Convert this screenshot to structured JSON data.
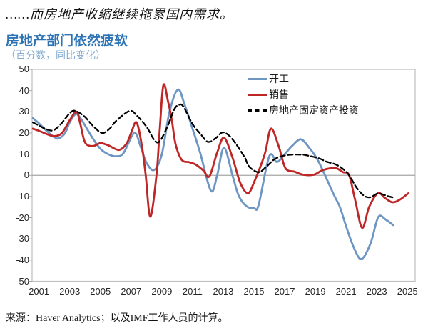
{
  "page": {
    "heading": "……而房地产收缩继续拖累国内需求。",
    "source": "来源：Haver Analytics；以及IMF工作人员的计算。"
  },
  "chart": {
    "title": "房地产部门依然疲软",
    "subtitle": "（百分数，同比变化）",
    "colors": {
      "title": "#2E74B5",
      "subtitle": "#84ABCF",
      "axis_text": "#262626",
      "plot_border": "#BFBFBF",
      "zero_line": "#A6A6A6",
      "tick": "#A6A6A6"
    }
  },
  "chart_data": {
    "type": "line",
    "title": "房地产部门依然疲软",
    "subtitle": "（百分数，同比变化）",
    "xlabel": "",
    "ylabel": "",
    "ylim": [
      -50,
      50
    ],
    "xlim": [
      2000.55,
      2025.5
    ],
    "y_ticks": [
      50,
      40,
      30,
      20,
      10,
      0,
      -10,
      -20,
      -30,
      -40,
      -50
    ],
    "x_ticks": [
      2001,
      2003,
      2005,
      2007,
      2009,
      2011,
      2013,
      2015,
      2017,
      2019,
      2021,
      2023,
      2025
    ],
    "grid": "zero-line-only",
    "legend_position": "top-right-inside",
    "series": [
      {
        "name": "开工",
        "color": "#6D96C3",
        "style": "solid",
        "points": [
          [
            2000.6,
            27
          ],
          [
            2001,
            24.5
          ],
          [
            2001.5,
            21
          ],
          [
            2002,
            18
          ],
          [
            2002.3,
            17.5
          ],
          [
            2002.7,
            20
          ],
          [
            2003,
            25
          ],
          [
            2003.4,
            29
          ],
          [
            2003.7,
            27
          ],
          [
            2004,
            23.5
          ],
          [
            2004.5,
            17.5
          ],
          [
            2005,
            12.5
          ],
          [
            2005.5,
            10
          ],
          [
            2006,
            9
          ],
          [
            2006.5,
            10.5
          ],
          [
            2007.2,
            20
          ],
          [
            2007.6,
            14
          ],
          [
            2008,
            6
          ],
          [
            2008.5,
            2.5
          ],
          [
            2009,
            10
          ],
          [
            2009.5,
            30
          ],
          [
            2010.05,
            40.5
          ],
          [
            2010.5,
            33
          ],
          [
            2011,
            22
          ],
          [
            2011.5,
            10.5
          ],
          [
            2012.2,
            -7.3
          ],
          [
            2012.6,
            0
          ],
          [
            2013.05,
            13
          ],
          [
            2013.6,
            0
          ],
          [
            2014,
            -9.5
          ],
          [
            2014.5,
            -14.5
          ],
          [
            2015,
            -15.5
          ],
          [
            2015.3,
            -14
          ],
          [
            2016,
            9
          ],
          [
            2016.5,
            6.3
          ],
          [
            2017,
            10
          ],
          [
            2017.5,
            14
          ],
          [
            2018.05,
            17
          ],
          [
            2018.6,
            13
          ],
          [
            2019.2,
            6.6
          ],
          [
            2020.2,
            -9.1
          ],
          [
            2020.6,
            -15
          ],
          [
            2021,
            -24
          ],
          [
            2021.5,
            -34
          ],
          [
            2022,
            -39.5
          ],
          [
            2022.6,
            -32
          ],
          [
            2023.1,
            -19.7
          ],
          [
            2023.6,
            -21
          ],
          [
            2024.07,
            -23.5
          ]
        ]
      },
      {
        "name": "销售",
        "color": "#BF2726",
        "style": "solid",
        "points": [
          [
            2000.6,
            22
          ],
          [
            2001,
            21
          ],
          [
            2001.5,
            19.5
          ],
          [
            2002,
            18.5
          ],
          [
            2002.5,
            20
          ],
          [
            2003,
            26
          ],
          [
            2003.45,
            30
          ],
          [
            2003.7,
            24
          ],
          [
            2004,
            15.5
          ],
          [
            2004.5,
            13.8
          ],
          [
            2005,
            15.2
          ],
          [
            2005.5,
            14.2
          ],
          [
            2006.2,
            12
          ],
          [
            2006.7,
            15
          ],
          [
            2007,
            20
          ],
          [
            2007.35,
            25
          ],
          [
            2007.7,
            14
          ],
          [
            2007.95,
            0
          ],
          [
            2008.25,
            -19.5
          ],
          [
            2008.65,
            0
          ],
          [
            2008.85,
            20
          ],
          [
            2009.1,
            42.5
          ],
          [
            2009.4,
            35
          ],
          [
            2009.65,
            26
          ],
          [
            2009.9,
            14.6
          ],
          [
            2010.3,
            7.3
          ],
          [
            2010.8,
            6.2
          ],
          [
            2011.2,
            5.1
          ],
          [
            2011.7,
            2.3
          ],
          [
            2012.1,
            -0.5
          ],
          [
            2012.6,
            10.7
          ],
          [
            2013.05,
            17.8
          ],
          [
            2013.6,
            8.4
          ],
          [
            2014.1,
            -3.4
          ],
          [
            2014.6,
            -8.4
          ],
          [
            2015,
            -3.4
          ],
          [
            2015.7,
            10
          ],
          [
            2016.1,
            22
          ],
          [
            2016.6,
            14
          ],
          [
            2017.05,
            3.4
          ],
          [
            2017.65,
            1.7
          ],
          [
            2018.2,
            0.3
          ],
          [
            2018.9,
            0.3
          ],
          [
            2019.5,
            2.5
          ],
          [
            2020.3,
            3.4
          ],
          [
            2020.8,
            1.5
          ],
          [
            2021.2,
            0
          ],
          [
            2021.6,
            -12
          ],
          [
            2022.05,
            -24.8
          ],
          [
            2022.5,
            -15
          ],
          [
            2023.07,
            -8.4
          ],
          [
            2023.5,
            -10.5
          ],
          [
            2024,
            -12.7
          ],
          [
            2024.5,
            -11.5
          ],
          [
            2025.05,
            -8.5
          ]
        ]
      },
      {
        "name": "房地产固定资产投资",
        "color": "#000000",
        "style": "dashed",
        "points": [
          [
            2000.6,
            25
          ],
          [
            2001,
            23.5
          ],
          [
            2001.4,
            22
          ],
          [
            2001.9,
            21.2
          ],
          [
            2002.4,
            24
          ],
          [
            2003.1,
            30
          ],
          [
            2003.5,
            30
          ],
          [
            2004,
            27.5
          ],
          [
            2004.5,
            23.5
          ],
          [
            2005.1,
            20
          ],
          [
            2005.6,
            22
          ],
          [
            2006,
            25.5
          ],
          [
            2006.9,
            30.4
          ],
          [
            2007.4,
            28
          ],
          [
            2008,
            23
          ],
          [
            2008.7,
            15.5
          ],
          [
            2009.3,
            22
          ],
          [
            2009.8,
            31
          ],
          [
            2010.1,
            33.2
          ],
          [
            2010.4,
            32.5
          ],
          [
            2011,
            24.2
          ],
          [
            2011.5,
            19.7
          ],
          [
            2012,
            15.8
          ],
          [
            2012.5,
            17.5
          ],
          [
            2012.95,
            20.3
          ],
          [
            2013.4,
            18.6
          ],
          [
            2013.9,
            14.1
          ],
          [
            2014.4,
            8.4
          ],
          [
            2014.7,
            4
          ],
          [
            2015.3,
            1.5
          ],
          [
            2015.8,
            4
          ],
          [
            2016.3,
            7.4
          ],
          [
            2016.8,
            9
          ],
          [
            2017.3,
            9.7
          ],
          [
            2018,
            9.8
          ],
          [
            2018.4,
            9.5
          ],
          [
            2019.2,
            8.1
          ],
          [
            2019.7,
            6.5
          ],
          [
            2020.3,
            5.2
          ],
          [
            2020.8,
            3
          ],
          [
            2021.2,
            0
          ],
          [
            2021.7,
            -6
          ],
          [
            2022.2,
            -9.8
          ],
          [
            2022.6,
            -10.3
          ],
          [
            2023.1,
            -8.6
          ],
          [
            2023.8,
            -10
          ],
          [
            2024.2,
            -10.6
          ]
        ]
      }
    ]
  }
}
